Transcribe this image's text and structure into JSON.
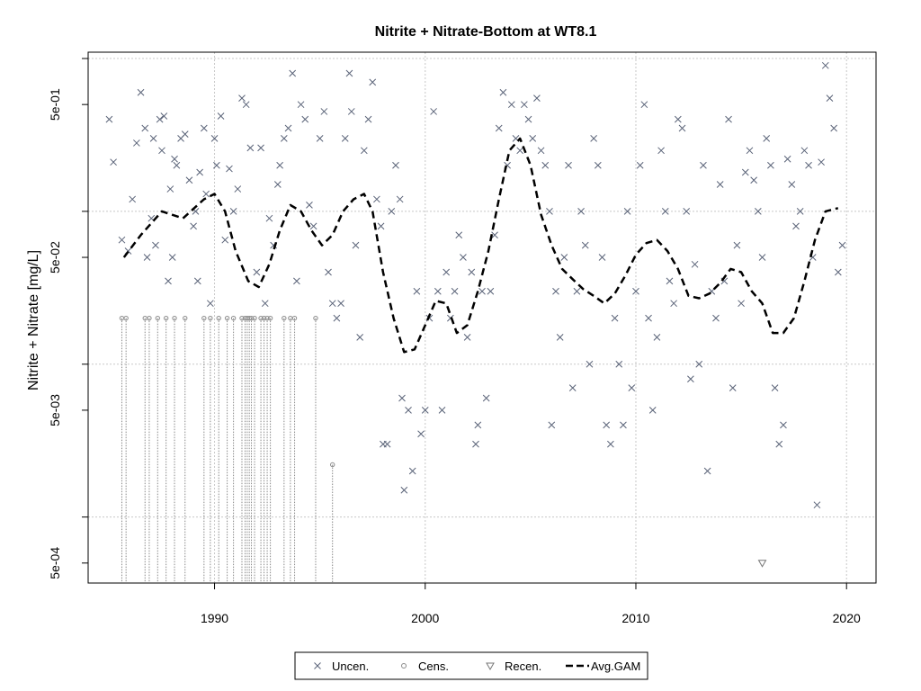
{
  "chart_data": {
    "type": "scatter",
    "title": "Nitrite + Nitrate-Bottom at WT8.1",
    "xlabel": "",
    "ylabel": "Nitrite + Nitrate [mg/L]",
    "x_axis": {
      "range": [
        1984.0,
        2021.4
      ],
      "ticks": [
        1990,
        2000,
        2010,
        2020
      ],
      "tick_labels": [
        "1990",
        "2000",
        "2010",
        "2020"
      ]
    },
    "y_axis": {
      "scale": "log",
      "range": [
        0.00037,
        1.1
      ],
      "labeled_ticks": [
        0.0005,
        0.005,
        0.05,
        0.5
      ],
      "tick_labels": [
        "5e-04",
        "5e-03",
        "5e-02",
        "5e-01"
      ],
      "minor_ticks": [
        0.001,
        0.01,
        0.1,
        1
      ]
    },
    "grid": true,
    "colors": {
      "uncensored": "#5a6378",
      "censored": "#8a8a8a",
      "recensored": "#777777",
      "gam": "#000000",
      "grid": "#c8c8c8"
    },
    "legend": {
      "placement": "bottom-center",
      "entries": [
        {
          "label": "Uncen.",
          "symbol": "x-mark"
        },
        {
          "label": "Cens.",
          "symbol": "circle"
        },
        {
          "label": "Recen.",
          "symbol": "triangle-down"
        },
        {
          "label": "Avg.GAM",
          "symbol": "dashed-line"
        }
      ]
    },
    "series": [
      {
        "name": "Uncen.",
        "kind": "scatter-x",
        "points": [
          [
            1985.0,
            0.4
          ],
          [
            1985.2,
            0.21
          ],
          [
            1985.6,
            0.065
          ],
          [
            1985.9,
            0.055
          ],
          [
            1986.1,
            0.12
          ],
          [
            1986.3,
            0.28
          ],
          [
            1986.5,
            0.6
          ],
          [
            1986.7,
            0.35
          ],
          [
            1986.8,
            0.05
          ],
          [
            1987.0,
            0.09
          ],
          [
            1987.1,
            0.3
          ],
          [
            1987.2,
            0.06
          ],
          [
            1987.4,
            0.4
          ],
          [
            1987.5,
            0.25
          ],
          [
            1987.6,
            0.42
          ],
          [
            1987.8,
            0.035
          ],
          [
            1987.9,
            0.14
          ],
          [
            1988.0,
            0.05
          ],
          [
            1988.1,
            0.22
          ],
          [
            1988.2,
            0.2
          ],
          [
            1988.4,
            0.3
          ],
          [
            1988.6,
            0.32
          ],
          [
            1988.8,
            0.16
          ],
          [
            1989.0,
            0.08
          ],
          [
            1989.1,
            0.1
          ],
          [
            1989.2,
            0.035
          ],
          [
            1989.3,
            0.18
          ],
          [
            1989.5,
            0.35
          ],
          [
            1989.6,
            0.13
          ],
          [
            1989.8,
            0.025
          ],
          [
            1990.0,
            0.3
          ],
          [
            1990.1,
            0.2
          ],
          [
            1990.3,
            0.42
          ],
          [
            1990.5,
            0.065
          ],
          [
            1990.7,
            0.19
          ],
          [
            1990.9,
            0.1
          ],
          [
            1991.1,
            0.14
          ],
          [
            1991.3,
            0.55
          ],
          [
            1991.5,
            0.5
          ],
          [
            1991.7,
            0.26
          ],
          [
            1992.0,
            0.04
          ],
          [
            1992.2,
            0.26
          ],
          [
            1992.4,
            0.025
          ],
          [
            1992.6,
            0.09
          ],
          [
            1992.8,
            0.06
          ],
          [
            1993.0,
            0.15
          ],
          [
            1993.1,
            0.2
          ],
          [
            1993.3,
            0.3
          ],
          [
            1993.5,
            0.35
          ],
          [
            1993.7,
            0.8
          ],
          [
            1993.9,
            0.035
          ],
          [
            1994.1,
            0.5
          ],
          [
            1994.3,
            0.4
          ],
          [
            1994.5,
            0.11
          ],
          [
            1994.7,
            0.08
          ],
          [
            1995.0,
            0.3
          ],
          [
            1995.2,
            0.45
          ],
          [
            1995.4,
            0.04
          ],
          [
            1995.6,
            0.025
          ],
          [
            1995.8,
            0.02
          ],
          [
            1996.0,
            0.025
          ],
          [
            1996.2,
            0.3
          ],
          [
            1996.4,
            0.8
          ],
          [
            1996.5,
            0.45
          ],
          [
            1996.7,
            0.06
          ],
          [
            1996.9,
            0.015
          ],
          [
            1997.1,
            0.25
          ],
          [
            1997.3,
            0.4
          ],
          [
            1997.5,
            0.7
          ],
          [
            1997.7,
            0.12
          ],
          [
            1997.9,
            0.08
          ],
          [
            1998.0,
            0.003
          ],
          [
            1998.2,
            0.003
          ],
          [
            1998.4,
            0.1
          ],
          [
            1998.6,
            0.2
          ],
          [
            1998.8,
            0.12
          ],
          [
            1998.9,
            0.006
          ],
          [
            1999.0,
            0.0015
          ],
          [
            1999.2,
            0.005
          ],
          [
            1999.4,
            0.002
          ],
          [
            1999.6,
            0.03
          ],
          [
            1999.8,
            0.0035
          ],
          [
            2000.0,
            0.005
          ],
          [
            2000.2,
            0.02
          ],
          [
            2000.4,
            0.45
          ],
          [
            2000.6,
            0.03
          ],
          [
            2000.8,
            0.005
          ],
          [
            2001.0,
            0.04
          ],
          [
            2001.2,
            0.02
          ],
          [
            2001.4,
            0.03
          ],
          [
            2001.6,
            0.07
          ],
          [
            2001.8,
            0.05
          ],
          [
            2002.0,
            0.015
          ],
          [
            2002.2,
            0.04
          ],
          [
            2002.4,
            0.003
          ],
          [
            2002.5,
            0.004
          ],
          [
            2002.7,
            0.03
          ],
          [
            2002.9,
            0.006
          ],
          [
            2003.1,
            0.03
          ],
          [
            2003.3,
            0.07
          ],
          [
            2003.5,
            0.35
          ],
          [
            2003.7,
            0.6
          ],
          [
            2003.9,
            0.2
          ],
          [
            2004.1,
            0.5
          ],
          [
            2004.3,
            0.3
          ],
          [
            2004.5,
            0.25
          ],
          [
            2004.7,
            0.5
          ],
          [
            2004.9,
            0.4
          ],
          [
            2005.1,
            0.3
          ],
          [
            2005.3,
            0.55
          ],
          [
            2005.5,
            0.25
          ],
          [
            2005.7,
            0.2
          ],
          [
            2005.9,
            0.1
          ],
          [
            2006.0,
            0.004
          ],
          [
            2006.2,
            0.03
          ],
          [
            2006.4,
            0.015
          ],
          [
            2006.6,
            0.05
          ],
          [
            2006.8,
            0.2
          ],
          [
            2007.0,
            0.007
          ],
          [
            2007.2,
            0.03
          ],
          [
            2007.4,
            0.1
          ],
          [
            2007.6,
            0.06
          ],
          [
            2007.8,
            0.01
          ],
          [
            2008.0,
            0.3
          ],
          [
            2008.2,
            0.2
          ],
          [
            2008.4,
            0.05
          ],
          [
            2008.6,
            0.004
          ],
          [
            2008.8,
            0.003
          ],
          [
            2009.0,
            0.02
          ],
          [
            2009.2,
            0.01
          ],
          [
            2009.4,
            0.004
          ],
          [
            2009.6,
            0.1
          ],
          [
            2009.8,
            0.007
          ],
          [
            2010.0,
            0.03
          ],
          [
            2010.2,
            0.2
          ],
          [
            2010.4,
            0.5
          ],
          [
            2010.6,
            0.02
          ],
          [
            2010.8,
            0.005
          ],
          [
            2011.0,
            0.015
          ],
          [
            2011.2,
            0.25
          ],
          [
            2011.4,
            0.1
          ],
          [
            2011.6,
            0.035
          ],
          [
            2011.8,
            0.025
          ],
          [
            2012.0,
            0.4
          ],
          [
            2012.2,
            0.35
          ],
          [
            2012.4,
            0.1
          ],
          [
            2012.6,
            0.008
          ],
          [
            2012.8,
            0.045
          ],
          [
            2013.0,
            0.01
          ],
          [
            2013.2,
            0.2
          ],
          [
            2013.4,
            0.002
          ],
          [
            2013.6,
            0.03
          ],
          [
            2013.8,
            0.02
          ],
          [
            2014.0,
            0.15
          ],
          [
            2014.2,
            0.035
          ],
          [
            2014.4,
            0.4
          ],
          [
            2014.6,
            0.007
          ],
          [
            2014.8,
            0.06
          ],
          [
            2015.0,
            0.025
          ],
          [
            2015.2,
            0.18
          ],
          [
            2015.4,
            0.25
          ],
          [
            2015.6,
            0.16
          ],
          [
            2015.8,
            0.1
          ],
          [
            2016.0,
            0.05
          ],
          [
            2016.2,
            0.3
          ],
          [
            2016.4,
            0.2
          ],
          [
            2016.6,
            0.007
          ],
          [
            2016.8,
            0.003
          ],
          [
            2017.0,
            0.004
          ],
          [
            2017.2,
            0.22
          ],
          [
            2017.4,
            0.15
          ],
          [
            2017.6,
            0.08
          ],
          [
            2017.8,
            0.1
          ],
          [
            2018.0,
            0.25
          ],
          [
            2018.2,
            0.2
          ],
          [
            2018.4,
            0.05
          ],
          [
            2018.6,
            0.0012
          ],
          [
            2018.8,
            0.21
          ],
          [
            2019.0,
            0.9
          ],
          [
            2019.2,
            0.55
          ],
          [
            2019.4,
            0.35
          ],
          [
            2019.6,
            0.04
          ],
          [
            2019.8,
            0.06
          ]
        ]
      },
      {
        "name": "Cens.",
        "kind": "scatter-circle",
        "points": [
          [
            1985.6,
            0.02
          ],
          [
            1985.8,
            0.02
          ],
          [
            1986.7,
            0.02
          ],
          [
            1986.9,
            0.02
          ],
          [
            1987.3,
            0.02
          ],
          [
            1987.7,
            0.02
          ],
          [
            1988.1,
            0.02
          ],
          [
            1988.6,
            0.02
          ],
          [
            1989.5,
            0.02
          ],
          [
            1989.8,
            0.02
          ],
          [
            1990.2,
            0.02
          ],
          [
            1990.6,
            0.02
          ],
          [
            1990.9,
            0.02
          ],
          [
            1991.3,
            0.02
          ],
          [
            1991.45,
            0.02
          ],
          [
            1991.55,
            0.02
          ],
          [
            1991.65,
            0.02
          ],
          [
            1991.75,
            0.02
          ],
          [
            1991.9,
            0.02
          ],
          [
            1992.2,
            0.02
          ],
          [
            1992.35,
            0.02
          ],
          [
            1992.5,
            0.02
          ],
          [
            1992.65,
            0.02
          ],
          [
            1993.3,
            0.02
          ],
          [
            1993.6,
            0.02
          ],
          [
            1993.8,
            0.02
          ],
          [
            1994.8,
            0.02
          ],
          [
            1995.6,
            0.0022
          ]
        ]
      },
      {
        "name": "Recen.",
        "kind": "scatter-triangle",
        "points": [
          [
            2016.0,
            0.0005
          ]
        ]
      },
      {
        "name": "Avg.GAM",
        "kind": "line-dashed",
        "points": [
          [
            1985.7,
            0.05
          ],
          [
            1986.5,
            0.07
          ],
          [
            1987.5,
            0.1
          ],
          [
            1988.5,
            0.09
          ],
          [
            1989.5,
            0.12
          ],
          [
            1990.0,
            0.13
          ],
          [
            1990.5,
            0.1
          ],
          [
            1991.0,
            0.055
          ],
          [
            1991.6,
            0.035
          ],
          [
            1992.1,
            0.032
          ],
          [
            1992.6,
            0.045
          ],
          [
            1993.1,
            0.075
          ],
          [
            1993.6,
            0.11
          ],
          [
            1994.1,
            0.1
          ],
          [
            1994.6,
            0.075
          ],
          [
            1995.1,
            0.06
          ],
          [
            1995.6,
            0.07
          ],
          [
            1996.1,
            0.1
          ],
          [
            1996.6,
            0.12
          ],
          [
            1997.1,
            0.13
          ],
          [
            1997.5,
            0.1
          ],
          [
            1998.0,
            0.04
          ],
          [
            1998.5,
            0.02
          ],
          [
            1999.0,
            0.012
          ],
          [
            1999.5,
            0.0125
          ],
          [
            2000.0,
            0.018
          ],
          [
            2000.5,
            0.026
          ],
          [
            2001.0,
            0.025
          ],
          [
            2001.5,
            0.016
          ],
          [
            2002.0,
            0.018
          ],
          [
            2002.5,
            0.03
          ],
          [
            2003.0,
            0.055
          ],
          [
            2003.5,
            0.12
          ],
          [
            2004.0,
            0.25
          ],
          [
            2004.5,
            0.3
          ],
          [
            2005.0,
            0.2
          ],
          [
            2005.5,
            0.095
          ],
          [
            2006.0,
            0.06
          ],
          [
            2006.5,
            0.042
          ],
          [
            2007.0,
            0.036
          ],
          [
            2007.5,
            0.031
          ],
          [
            2008.0,
            0.028
          ],
          [
            2008.5,
            0.025
          ],
          [
            2009.0,
            0.029
          ],
          [
            2009.5,
            0.038
          ],
          [
            2010.0,
            0.052
          ],
          [
            2010.5,
            0.062
          ],
          [
            2011.0,
            0.065
          ],
          [
            2011.5,
            0.055
          ],
          [
            2012.0,
            0.042
          ],
          [
            2012.5,
            0.028
          ],
          [
            2013.0,
            0.027
          ],
          [
            2013.5,
            0.029
          ],
          [
            2014.0,
            0.034
          ],
          [
            2014.5,
            0.042
          ],
          [
            2015.0,
            0.04
          ],
          [
            2015.5,
            0.03
          ],
          [
            2016.0,
            0.025
          ],
          [
            2016.5,
            0.016
          ],
          [
            2017.0,
            0.016
          ],
          [
            2017.5,
            0.02
          ],
          [
            2018.0,
            0.035
          ],
          [
            2018.5,
            0.065
          ],
          [
            2019.0,
            0.1
          ],
          [
            2019.6,
            0.105
          ]
        ]
      }
    ]
  }
}
